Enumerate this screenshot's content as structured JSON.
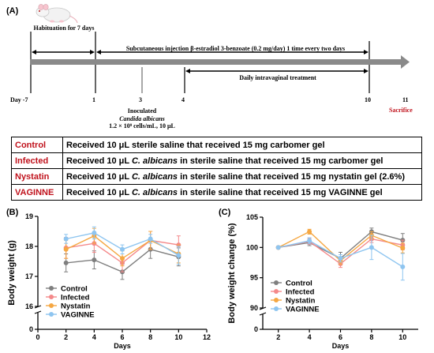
{
  "panelA": {
    "label": "(A)",
    "habituation": "Habituation for 7 days",
    "injection": "Subcutaneous injection β-estradiol 3-benzoate (0.2 mg/day) 1 time every two days",
    "treatment": "Daily intravaginal treatment",
    "inoculated_line1": "Inoculated",
    "inoculated_line2": "Candida albicans",
    "inoculated_line3": "1.2 × 10⁹ cells/mL, 10 μL",
    "days": [
      {
        "label": "Day -7"
      },
      {
        "label": "1"
      },
      {
        "label": "3"
      },
      {
        "label": "4"
      },
      {
        "label": "10"
      },
      {
        "label": "11"
      }
    ],
    "sacrifice": "Sacrifice",
    "groups": [
      {
        "name": "Control",
        "desc": "Received 10 μL sterile saline that received 15 mg carbomer gel"
      },
      {
        "name": "Infected",
        "desc": "Received 10 μL C. albicans in sterile saline that received 15 mg carbomer gel"
      },
      {
        "name": "Nystatin",
        "desc": "Received 10 μL C. albicans in sterile saline that received 15 mg nystatin gel (2.6%)"
      },
      {
        "name": "VAGINNE",
        "desc": "Received 10 μL C. albicans in sterile saline that received 15 mg VAGINNE gel"
      }
    ]
  },
  "colors": {
    "Control": "#7f7f7f",
    "Infected": "#f4898a",
    "Nystatin": "#f5a742",
    "VAGINNE": "#8ec5f0",
    "sacrifice": "#c0121c",
    "arrow": "#8a8a8a"
  },
  "chart_data": [
    {
      "label": "(B)",
      "type": "line",
      "xlabel": "Days",
      "ylabel": "Body weight (g)",
      "xlim": [
        0,
        12
      ],
      "xticks": [
        "0",
        "2",
        "4",
        "6",
        "8",
        "10",
        "12"
      ],
      "ylim_upper": [
        16,
        19
      ],
      "yticks_upper": [
        "16",
        "17",
        "18",
        "19"
      ],
      "ytick_lower": "0",
      "axis_break": true,
      "x": [
        2,
        4,
        6,
        8,
        10
      ],
      "series": [
        {
          "name": "Control",
          "values": [
            17.45,
            17.55,
            17.15,
            17.9,
            17.65
          ],
          "err": [
            0.3,
            0.3,
            0.25,
            0.3,
            0.3
          ]
        },
        {
          "name": "Infected",
          "values": [
            17.95,
            18.1,
            17.45,
            18.2,
            18.05
          ],
          "err": [
            0.35,
            0.3,
            0.3,
            0.3,
            0.3
          ]
        },
        {
          "name": "Nystatin",
          "values": [
            17.9,
            18.35,
            17.6,
            18.2,
            17.75
          ],
          "err": [
            0.3,
            0.25,
            0.25,
            0.3,
            0.3
          ]
        },
        {
          "name": "VAGINNE",
          "values": [
            18.25,
            18.45,
            17.9,
            18.25,
            17.7
          ],
          "err": [
            0.15,
            0.2,
            0.15,
            0.15,
            0.3
          ]
        }
      ],
      "legend": [
        "Control",
        "Infected",
        "Nystatin",
        "VAGINNE"
      ]
    },
    {
      "label": "(C)",
      "type": "line",
      "xlabel": "Days",
      "ylabel": "Body weight change (%)",
      "xlim": [
        1,
        11
      ],
      "xticks": [
        "2",
        "4",
        "6",
        "8",
        "10"
      ],
      "ylim_upper": [
        90,
        105
      ],
      "yticks_upper": [
        "90",
        "95",
        "100",
        "105"
      ],
      "ytick_lower": "0",
      "axis_break": true,
      "x": [
        2,
        4,
        6,
        8,
        10
      ],
      "series": [
        {
          "name": "Control",
          "values": [
            100,
            100.8,
            98.2,
            102.6,
            101.2
          ],
          "err": [
            0,
            0.5,
            1.0,
            0.6,
            1.1
          ]
        },
        {
          "name": "Infected",
          "values": [
            100,
            101.0,
            97.3,
            101.4,
            100.4
          ],
          "err": [
            0,
            0.5,
            0.6,
            0.6,
            0.8
          ]
        },
        {
          "name": "Nystatin",
          "values": [
            100,
            102.6,
            97.8,
            102.0,
            99.9
          ],
          "err": [
            0,
            0.4,
            0.6,
            0.6,
            0.8
          ]
        },
        {
          "name": "VAGINNE",
          "values": [
            100,
            101.1,
            98.2,
            100.0,
            96.8
          ],
          "err": [
            0,
            0.5,
            0.6,
            2.0,
            2.2
          ]
        }
      ],
      "legend": [
        "Control",
        "Infected",
        "Nystatin",
        "VAGINNE"
      ]
    }
  ]
}
